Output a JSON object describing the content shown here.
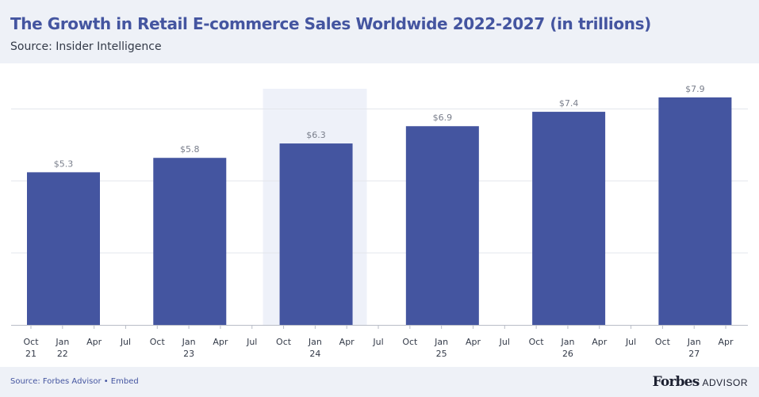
{
  "header": {
    "title": "The Growth in Retail E-commerce Sales Worldwide 2022-2027 (in trillions)",
    "subtitle": "Source: Insider Intelligence"
  },
  "footer": {
    "source": "Source: Forbes Advisor • Embed",
    "brand_main": "Forbes",
    "brand_sub": "ADVISOR"
  },
  "colors": {
    "bar": "#4455a0",
    "highlight": "#eef1f9",
    "grid": "#e3e6ec",
    "value_label": "#7a7f8c",
    "tick_label": "#333a48",
    "title": "#4455a0"
  },
  "chart_data": {
    "type": "bar",
    "title": "The Growth in Retail E-commerce Sales Worldwide 2022-2027 (in trillions)",
    "xlabel": "",
    "ylabel": "",
    "ylim": [
      0,
      8.2
    ],
    "grid": true,
    "categories": [
      "2022",
      "2023",
      "2024",
      "2025",
      "2026",
      "2027"
    ],
    "values": [
      5.3,
      5.8,
      6.3,
      6.9,
      7.4,
      7.9
    ],
    "value_labels": [
      "$5.3",
      "$5.8",
      "$6.3",
      "$6.9",
      "$7.4",
      "$7.9"
    ],
    "highlighted_category": "2024",
    "x_ticks": [
      [
        "Oct",
        "21"
      ],
      [
        "Jan",
        "22"
      ],
      [
        "Apr"
      ],
      [
        "Jul"
      ],
      [
        "Oct"
      ],
      [
        "Jan",
        "23"
      ],
      [
        "Apr"
      ],
      [
        "Jul"
      ],
      [
        "Oct"
      ],
      [
        "Jan",
        "24"
      ],
      [
        "Apr"
      ],
      [
        "Jul"
      ],
      [
        "Oct"
      ],
      [
        "Jan",
        "25"
      ],
      [
        "Apr"
      ],
      [
        "Jul"
      ],
      [
        "Oct"
      ],
      [
        "Jan",
        "26"
      ],
      [
        "Apr"
      ],
      [
        "Jul"
      ],
      [
        "Oct"
      ],
      [
        "Jan",
        "27"
      ],
      [
        "Apr"
      ]
    ]
  }
}
